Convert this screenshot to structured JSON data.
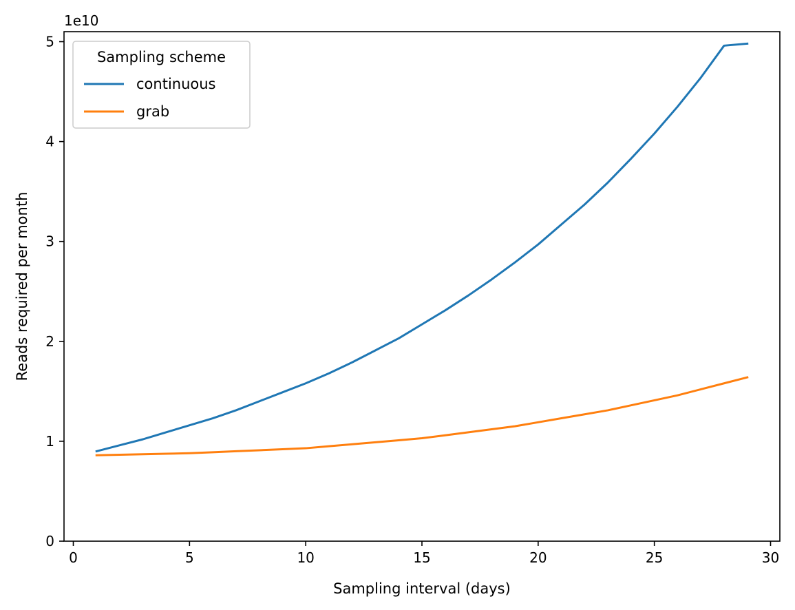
{
  "chart_data": {
    "type": "line",
    "xlabel": "Sampling interval (days)",
    "ylabel": "Reads required per month",
    "y_offset_label": "1e10",
    "y_scale": 10000000000,
    "xlim": [
      -0.4,
      30.4
    ],
    "ylim": [
      0,
      5.1
    ],
    "x_ticks": [
      0,
      5,
      10,
      15,
      20,
      25,
      30
    ],
    "x_tick_labels": [
      "0",
      "5",
      "10",
      "15",
      "20",
      "25",
      "30"
    ],
    "y_ticks": [
      0,
      1,
      2,
      3,
      4,
      5
    ],
    "y_tick_labels": [
      "0",
      "1",
      "2",
      "3",
      "4",
      "5"
    ],
    "grid": false,
    "legend": {
      "title": "Sampling scheme",
      "position": "upper-left"
    },
    "series": [
      {
        "name": "continuous",
        "color": "#1f77b4",
        "x": [
          1,
          2,
          3,
          4,
          5,
          6,
          7,
          8,
          9,
          10,
          11,
          12,
          13,
          14,
          15,
          16,
          17,
          18,
          19,
          20,
          21,
          22,
          23,
          24,
          25,
          26,
          27,
          28,
          29
        ],
        "y": [
          0.9,
          0.96,
          1.02,
          1.09,
          1.16,
          1.23,
          1.31,
          1.4,
          1.49,
          1.58,
          1.68,
          1.79,
          1.91,
          2.03,
          2.17,
          2.31,
          2.46,
          2.62,
          2.79,
          2.97,
          3.17,
          3.37,
          3.59,
          3.83,
          4.08,
          4.35,
          4.64,
          4.96,
          4.98
        ]
      },
      {
        "name": "grab",
        "color": "#ff7f0e",
        "x": [
          1,
          2,
          3,
          4,
          5,
          6,
          7,
          8,
          9,
          10,
          11,
          12,
          13,
          14,
          15,
          16,
          17,
          18,
          19,
          20,
          21,
          22,
          23,
          24,
          25,
          26,
          27,
          28,
          29
        ],
        "y": [
          0.86,
          0.865,
          0.87,
          0.875,
          0.88,
          0.89,
          0.9,
          0.91,
          0.92,
          0.93,
          0.95,
          0.97,
          0.99,
          1.01,
          1.03,
          1.06,
          1.09,
          1.12,
          1.15,
          1.19,
          1.23,
          1.27,
          1.31,
          1.36,
          1.41,
          1.46,
          1.52,
          1.58,
          1.64
        ]
      }
    ]
  }
}
